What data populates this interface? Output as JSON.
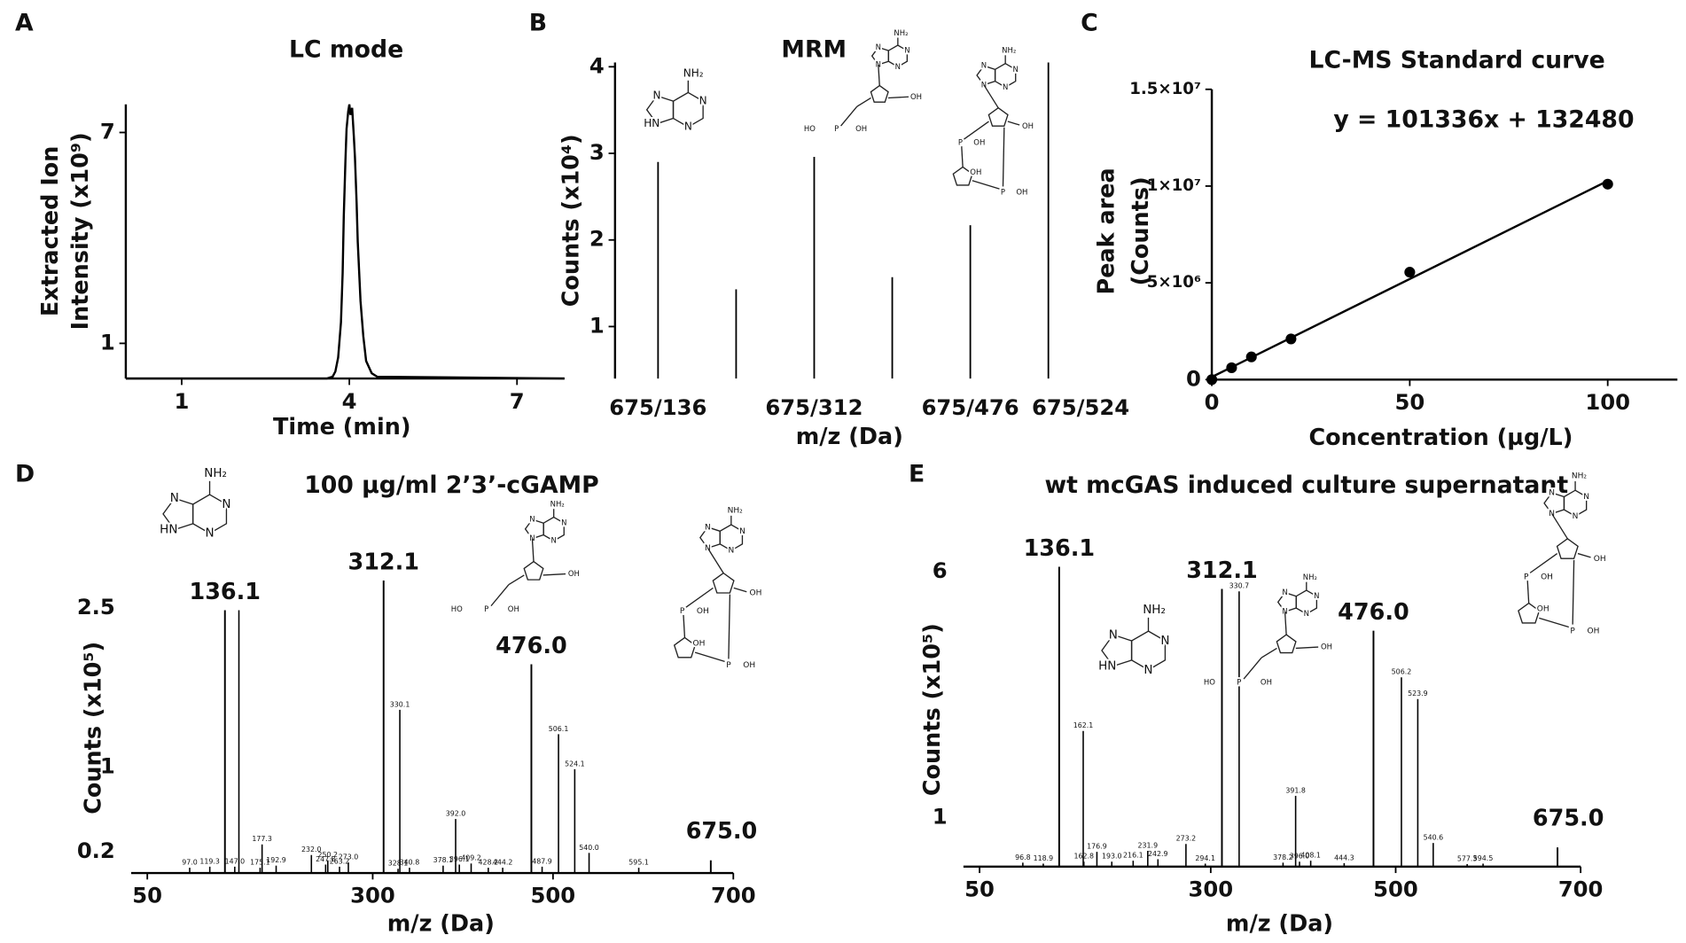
{
  "chart_data": [
    {
      "panel": "A",
      "type": "line",
      "title": "LC mode",
      "y_label": [
        "Extracted Ion",
        "Intensity (x10⁹)"
      ],
      "x_label": "Time (min)",
      "x": [
        0,
        3.6,
        3.7,
        3.75,
        3.8,
        3.85,
        3.88,
        3.9,
        3.93,
        3.95,
        3.98,
        4.0,
        4.02,
        4.05,
        4.08,
        4.1,
        4.13,
        4.15,
        4.2,
        4.25,
        4.3,
        4.4,
        4.5,
        7.85
      ],
      "values": [
        0,
        0,
        0.05,
        0.2,
        0.6,
        1.6,
        3.0,
        4.6,
        6.2,
        7.1,
        7.6,
        7.8,
        7.5,
        7.7,
        6.9,
        6.3,
        5.0,
        3.9,
        2.2,
        1.2,
        0.5,
        0.15,
        0.05,
        0
      ],
      "xlim": [
        0,
        7.85
      ],
      "ylim": [
        0,
        7.8
      ],
      "xticks": [
        1,
        4,
        7
      ],
      "yticks": [
        1,
        7
      ],
      "color": "#000000"
    },
    {
      "panel": "B",
      "type": "bar",
      "title": "MRM",
      "y_label": "Counts (x10⁴)",
      "x_label": "m/z (Da)",
      "categories": [
        "675/136",
        null,
        "675/312",
        null,
        "675/476",
        "675/524"
      ],
      "values": [
        2.9,
        1.43,
        2.96,
        1.57,
        2.17,
        4.05
      ],
      "ylim": [
        0.4,
        4.05
      ],
      "yticks": [
        1,
        2,
        3,
        4
      ],
      "color": "#000000",
      "structures": [
        [
          "NH₂",
          "N",
          "N",
          "N",
          "HN"
        ],
        [
          "NH₂",
          "N",
          "N",
          "N",
          "N",
          "OH",
          "HO",
          "P",
          "OH"
        ],
        [
          "NH₂",
          "N",
          "N",
          "N",
          "N",
          "OH",
          "P",
          "OH",
          "OH",
          "P",
          "OH"
        ]
      ]
    },
    {
      "panel": "C",
      "type": "scatter",
      "title": "LC-MS Standard curve",
      "annotation": "y = 101336x + 132480",
      "fit": {
        "slope": 101336,
        "intercept": 132480
      },
      "y_label": [
        "Peak area",
        "(Counts)"
      ],
      "x_label": "Concentration (µg/L)",
      "x": [
        0,
        5,
        10,
        20,
        50,
        100
      ],
      "values": [
        0,
        610000,
        1170000,
        2100000,
        5550000,
        10100000
      ],
      "xlim": [
        0,
        117.6
      ],
      "ylim": [
        0,
        15000000
      ],
      "xticks": [
        0,
        50,
        100
      ],
      "yticks": [
        0,
        {
          "value": 5000000,
          "label": "5×10⁶"
        },
        {
          "value": 10000000,
          "label": "1×10⁷"
        },
        {
          "value": 15000000,
          "label": "1.5×10⁷"
        }
      ],
      "color": "#000000"
    },
    {
      "panel": "D",
      "type": "spectrum",
      "title": "100 µg/ml 2’3’-cGAMP",
      "y_label": "Counts (x10⁵)",
      "x_label": "m/z (Da)",
      "x": [
        136.1,
        312.1,
        476.0,
        675.0
      ],
      "values": [
        2.48,
        2.76,
        1.97,
        0.12
      ],
      "x_labels": [
        "136.1",
        "312.1",
        "476.0",
        "675.0"
      ],
      "minor_x": [
        97.0,
        119.3,
        147.0,
        151.6,
        175.1,
        177.3,
        192.9,
        232.0,
        247.8,
        250.2,
        263.2,
        273.0,
        328.1,
        330.1,
        340.8,
        378.1,
        392.0,
        396.1,
        409.2,
        428.2,
        444.2,
        487.9,
        506.1,
        524.1,
        540.0,
        595.1
      ],
      "minor_values": [
        0.05,
        0.06,
        0.06,
        2.48,
        0.05,
        0.27,
        0.07,
        0.17,
        0.08,
        0.12,
        0.06,
        0.1,
        0.04,
        1.54,
        0.05,
        0.07,
        0.51,
        0.08,
        0.09,
        0.05,
        0.05,
        0.06,
        1.31,
        0.98,
        0.19,
        0.05
      ],
      "minor_x_labels": [
        "97.0",
        "119.3",
        "147.0",
        null,
        "175.1",
        "177.3",
        "192.9",
        "232.0",
        "247.8",
        "250.2",
        "263.2",
        "273.0",
        "328.1",
        "330.1",
        "340.8",
        "378.1",
        "392.0",
        "396.1",
        "409.2",
        "428.2",
        "444.2",
        "487.9",
        "506.1",
        "524.1",
        "540.0",
        "595.1"
      ],
      "xlim": [
        50,
        700
      ],
      "ylim": [
        0,
        2.8
      ],
      "xticks": [
        50,
        300,
        500,
        700
      ],
      "yticks": [
        0.2,
        1,
        2.5
      ],
      "color": "#000000",
      "structures": [
        [
          "NH₂",
          "N",
          "N",
          "N",
          "HN"
        ],
        [
          "NH₂",
          "N",
          "N",
          "N",
          "N",
          "OH",
          "HO",
          "P",
          "OH"
        ],
        [
          "NH₂",
          "N",
          "N",
          "N",
          "N",
          "OH",
          "P",
          "OH",
          "OH",
          "P",
          "OH"
        ]
      ]
    },
    {
      "panel": "E",
      "type": "spectrum",
      "title": "wt mcGAS induced culture supernatant",
      "y_label": "Counts (x10⁵)",
      "x_label": "m/z (Da)",
      "x": [
        136.1,
        312.1,
        476.0,
        675.0
      ],
      "values": [
        6.1,
        5.65,
        4.8,
        0.39
      ],
      "x_labels": [
        "136.1",
        "312.1",
        "476.0",
        "675.0"
      ],
      "minor_x": [
        96.8,
        118.9,
        162.1,
        162.8,
        176.9,
        193.0,
        216.1,
        231.9,
        242.9,
        273.2,
        294.1,
        330.7,
        378.2,
        391.8,
        396.0,
        408.1,
        444.3,
        506.2,
        523.9,
        540.6,
        577.3,
        594.5
      ],
      "minor_values": [
        0.08,
        0.06,
        2.76,
        0.1,
        0.3,
        0.1,
        0.12,
        0.32,
        0.15,
        0.46,
        0.06,
        5.6,
        0.08,
        1.44,
        0.1,
        0.12,
        0.07,
        3.85,
        3.41,
        0.48,
        0.05,
        0.06
      ],
      "minor_x_labels": [
        "96.8",
        "118.9",
        "162.1",
        "162.8",
        "176.9",
        "193.0",
        "216.1",
        "231.9",
        "242.9",
        "273.2",
        "294.1",
        "330.7",
        "378.2",
        "391.8",
        "396.0",
        "408.1",
        "444.3",
        "506.2",
        "523.9",
        "540.6",
        "577.3",
        "594.5"
      ],
      "xlim": [
        50,
        700
      ],
      "ylim": [
        0,
        6.3
      ],
      "xticks": [
        50,
        300,
        500,
        700
      ],
      "yticks": [
        1,
        6
      ],
      "color": "#000000",
      "structures": [
        [
          "NH₂",
          "N",
          "N",
          "N",
          "HN"
        ],
        [
          "NH₂",
          "N",
          "N",
          "N",
          "N",
          "OH",
          "HO",
          "P",
          "OH"
        ],
        [
          "NH₂",
          "N",
          "N",
          "N",
          "N",
          "OH",
          "P",
          "OH",
          "OH",
          "P",
          "OH"
        ]
      ]
    }
  ]
}
